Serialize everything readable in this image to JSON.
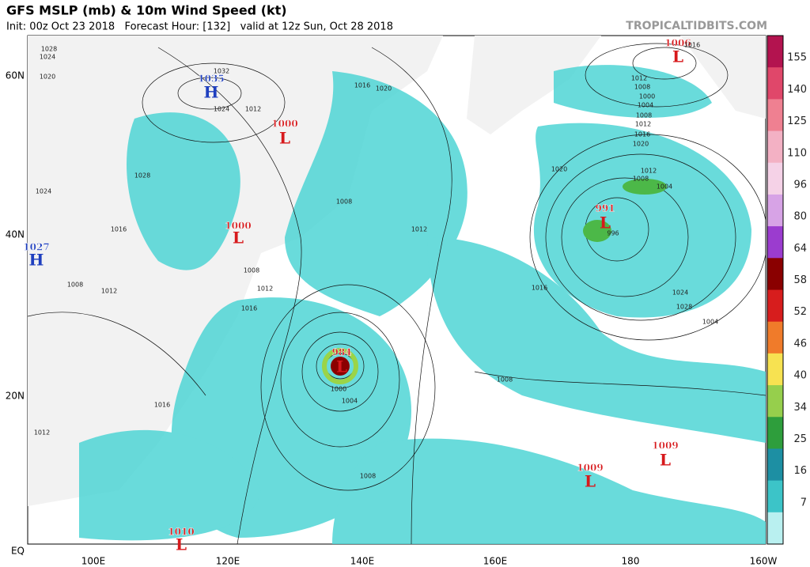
{
  "header": {
    "title": "GFS MSLP (mb) & 10m Wind Speed (kt)",
    "subtitle": "Init: 00z Oct 23 2018   Forecast Hour: [132]   valid at 12z Sun, Oct 28 2018",
    "source": "TROPICALTIDBITS.COM"
  },
  "map": {
    "lat_labels": [
      "60N",
      "40N",
      "20N",
      "EQ"
    ],
    "lon_labels": [
      "100E",
      "120E",
      "140E",
      "160E",
      "180",
      "160W"
    ],
    "centers": [
      {
        "letter": "H",
        "value": 1035
      },
      {
        "letter": "H",
        "value": 1027
      },
      {
        "letter": "L",
        "value": 1000
      },
      {
        "letter": "L",
        "value": 1000
      },
      {
        "letter": "L",
        "value": 984
      },
      {
        "letter": "L",
        "value": 991
      },
      {
        "letter": "L",
        "value": 1006
      },
      {
        "letter": "L",
        "value": 1009
      },
      {
        "letter": "L",
        "value": 1009
      },
      {
        "letter": "L",
        "value": 1010
      }
    ],
    "isobar_labels": [
      1028,
      1024,
      1032,
      1020,
      1024,
      1028,
      1024,
      1016,
      1020,
      1016,
      1012,
      1012,
      1012,
      1016,
      1008,
      1008,
      1012,
      1008,
      1016,
      1016,
      1020,
      1012,
      1008,
      1004,
      996,
      1000,
      1004,
      1008,
      1016,
      1012,
      1008,
      1000,
      1004,
      1008,
      1012,
      1016,
      1020,
      1024,
      1028,
      1004,
      1008,
      1012
    ]
  },
  "colorbar": {
    "ticks": [
      155,
      140,
      125,
      110,
      96,
      80,
      64,
      58,
      52,
      46,
      40,
      34,
      25,
      16,
      7
    ]
  }
}
